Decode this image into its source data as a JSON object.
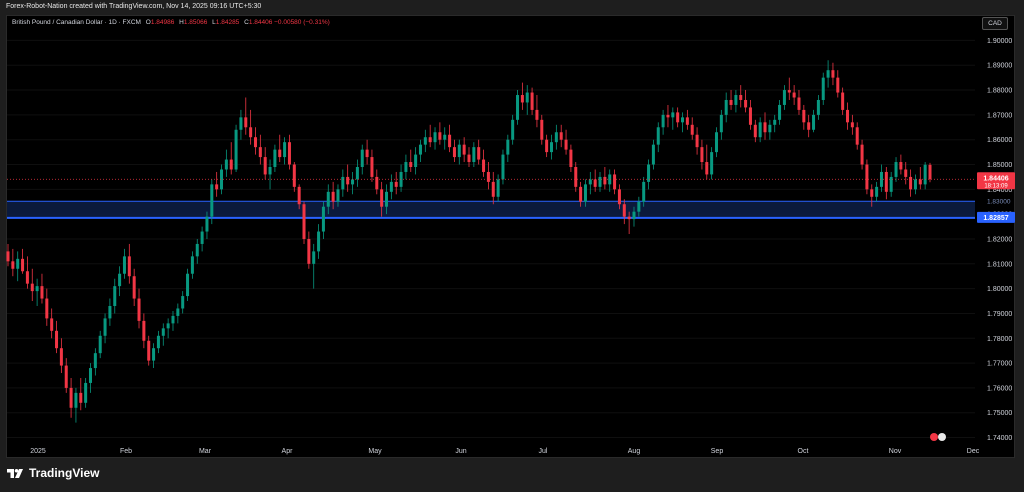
{
  "header": {
    "caption": "Forex-Robot-Nation created with TradingView.com, Nov 14, 2025 09:16 UTC+5:30"
  },
  "legend": {
    "symbol": "British Pound / Canadian Dollar · 1D · FXCM",
    "open_label": "O",
    "open": "1.84986",
    "high_label": "H",
    "high": "1.85066",
    "low_label": "L",
    "low": "1.84285",
    "close_label": "C",
    "close": "1.84406",
    "change": "−0.00580 (−0.31%)"
  },
  "currency_button": {
    "label": "CAD"
  },
  "price_badges": {
    "last_price": "1.84406",
    "countdown": "18:13:09",
    "zone_price": "1.82857",
    "zone_price_hidden": "1.83000"
  },
  "markers": {
    "events_icon_label": "events"
  },
  "footer": {
    "brand": "TradingView"
  },
  "colors": {
    "up": "#089981",
    "down": "#f23645",
    "zone_line": "#2962ff",
    "zone_fill": "#0d1f47",
    "background": "#000000"
  },
  "chart_data": {
    "type": "candlestick",
    "instrument": "British Pound / Canadian Dollar",
    "timeframe": "1D",
    "ylim": [
      1.737,
      1.905
    ],
    "y_ticks": [
      "1.90000",
      "1.89000",
      "1.88000",
      "1.87000",
      "1.86000",
      "1.85000",
      "1.84000",
      "1.83000",
      "1.82000",
      "1.81000",
      "1.80000",
      "1.79000",
      "1.78000",
      "1.77000",
      "1.76000",
      "1.75000",
      "1.74000"
    ],
    "x_ticks": [
      "2025",
      "Feb",
      "Mar",
      "Apr",
      "May",
      "Jun",
      "Jul",
      "Aug",
      "Sep",
      "Oct",
      "Nov",
      "Dec"
    ],
    "support_zone": {
      "lower": 1.8285,
      "upper": 1.8352
    },
    "last_price_line": 1.84406,
    "candles": [
      {
        "o": 1.815,
        "h": 1.818,
        "l": 1.809,
        "c": 1.811
      },
      {
        "o": 1.811,
        "h": 1.816,
        "l": 1.805,
        "c": 1.808
      },
      {
        "o": 1.808,
        "h": 1.815,
        "l": 1.803,
        "c": 1.812
      },
      {
        "o": 1.812,
        "h": 1.816,
        "l": 1.806,
        "c": 1.807
      },
      {
        "o": 1.807,
        "h": 1.813,
        "l": 1.8,
        "c": 1.802
      },
      {
        "o": 1.802,
        "h": 1.808,
        "l": 1.795,
        "c": 1.799
      },
      {
        "o": 1.799,
        "h": 1.804,
        "l": 1.793,
        "c": 1.801
      },
      {
        "o": 1.801,
        "h": 1.806,
        "l": 1.794,
        "c": 1.796
      },
      {
        "o": 1.796,
        "h": 1.8,
        "l": 1.785,
        "c": 1.788
      },
      {
        "o": 1.788,
        "h": 1.792,
        "l": 1.78,
        "c": 1.783
      },
      {
        "o": 1.783,
        "h": 1.787,
        "l": 1.774,
        "c": 1.776
      },
      {
        "o": 1.776,
        "h": 1.78,
        "l": 1.766,
        "c": 1.769
      },
      {
        "o": 1.769,
        "h": 1.772,
        "l": 1.758,
        "c": 1.76
      },
      {
        "o": 1.76,
        "h": 1.764,
        "l": 1.748,
        "c": 1.752
      },
      {
        "o": 1.752,
        "h": 1.76,
        "l": 1.746,
        "c": 1.758
      },
      {
        "o": 1.758,
        "h": 1.764,
        "l": 1.751,
        "c": 1.754
      },
      {
        "o": 1.754,
        "h": 1.764,
        "l": 1.752,
        "c": 1.762
      },
      {
        "o": 1.762,
        "h": 1.77,
        "l": 1.758,
        "c": 1.768
      },
      {
        "o": 1.768,
        "h": 1.776,
        "l": 1.765,
        "c": 1.774
      },
      {
        "o": 1.774,
        "h": 1.783,
        "l": 1.772,
        "c": 1.781
      },
      {
        "o": 1.781,
        "h": 1.79,
        "l": 1.778,
        "c": 1.788
      },
      {
        "o": 1.788,
        "h": 1.796,
        "l": 1.785,
        "c": 1.793
      },
      {
        "o": 1.793,
        "h": 1.804,
        "l": 1.79,
        "c": 1.801
      },
      {
        "o": 1.801,
        "h": 1.809,
        "l": 1.797,
        "c": 1.806
      },
      {
        "o": 1.806,
        "h": 1.816,
        "l": 1.804,
        "c": 1.813
      },
      {
        "o": 1.813,
        "h": 1.818,
        "l": 1.802,
        "c": 1.805
      },
      {
        "o": 1.805,
        "h": 1.808,
        "l": 1.793,
        "c": 1.796
      },
      {
        "o": 1.796,
        "h": 1.8,
        "l": 1.784,
        "c": 1.787
      },
      {
        "o": 1.787,
        "h": 1.79,
        "l": 1.776,
        "c": 1.779
      },
      {
        "o": 1.779,
        "h": 1.781,
        "l": 1.769,
        "c": 1.771
      },
      {
        "o": 1.771,
        "h": 1.778,
        "l": 1.768,
        "c": 1.776
      },
      {
        "o": 1.776,
        "h": 1.783,
        "l": 1.774,
        "c": 1.781
      },
      {
        "o": 1.781,
        "h": 1.786,
        "l": 1.777,
        "c": 1.784
      },
      {
        "o": 1.784,
        "h": 1.788,
        "l": 1.78,
        "c": 1.786
      },
      {
        "o": 1.786,
        "h": 1.791,
        "l": 1.783,
        "c": 1.789
      },
      {
        "o": 1.789,
        "h": 1.794,
        "l": 1.786,
        "c": 1.792
      },
      {
        "o": 1.792,
        "h": 1.799,
        "l": 1.79,
        "c": 1.797
      },
      {
        "o": 1.797,
        "h": 1.808,
        "l": 1.795,
        "c": 1.806
      },
      {
        "o": 1.806,
        "h": 1.815,
        "l": 1.804,
        "c": 1.813
      },
      {
        "o": 1.813,
        "h": 1.82,
        "l": 1.81,
        "c": 1.818
      },
      {
        "o": 1.818,
        "h": 1.825,
        "l": 1.815,
        "c": 1.823
      },
      {
        "o": 1.823,
        "h": 1.831,
        "l": 1.82,
        "c": 1.829
      },
      {
        "o": 1.829,
        "h": 1.844,
        "l": 1.826,
        "c": 1.842
      },
      {
        "o": 1.842,
        "h": 1.847,
        "l": 1.837,
        "c": 1.84
      },
      {
        "o": 1.84,
        "h": 1.85,
        "l": 1.838,
        "c": 1.848
      },
      {
        "o": 1.848,
        "h": 1.856,
        "l": 1.845,
        "c": 1.852
      },
      {
        "o": 1.852,
        "h": 1.859,
        "l": 1.846,
        "c": 1.848
      },
      {
        "o": 1.848,
        "h": 1.866,
        "l": 1.847,
        "c": 1.864
      },
      {
        "o": 1.864,
        "h": 1.872,
        "l": 1.86,
        "c": 1.869
      },
      {
        "o": 1.869,
        "h": 1.877,
        "l": 1.862,
        "c": 1.865
      },
      {
        "o": 1.865,
        "h": 1.872,
        "l": 1.858,
        "c": 1.861
      },
      {
        "o": 1.861,
        "h": 1.865,
        "l": 1.854,
        "c": 1.857
      },
      {
        "o": 1.857,
        "h": 1.862,
        "l": 1.85,
        "c": 1.853
      },
      {
        "o": 1.853,
        "h": 1.857,
        "l": 1.844,
        "c": 1.846
      },
      {
        "o": 1.846,
        "h": 1.852,
        "l": 1.84,
        "c": 1.849
      },
      {
        "o": 1.849,
        "h": 1.858,
        "l": 1.847,
        "c": 1.856
      },
      {
        "o": 1.856,
        "h": 1.862,
        "l": 1.851,
        "c": 1.853
      },
      {
        "o": 1.853,
        "h": 1.861,
        "l": 1.85,
        "c": 1.859
      },
      {
        "o": 1.859,
        "h": 1.862,
        "l": 1.848,
        "c": 1.85
      },
      {
        "o": 1.85,
        "h": 1.851,
        "l": 1.839,
        "c": 1.841
      },
      {
        "o": 1.841,
        "h": 1.842,
        "l": 1.832,
        "c": 1.834
      },
      {
        "o": 1.834,
        "h": 1.835,
        "l": 1.818,
        "c": 1.82
      },
      {
        "o": 1.82,
        "h": 1.823,
        "l": 1.808,
        "c": 1.81
      },
      {
        "o": 1.81,
        "h": 1.818,
        "l": 1.8,
        "c": 1.815
      },
      {
        "o": 1.815,
        "h": 1.826,
        "l": 1.812,
        "c": 1.823
      },
      {
        "o": 1.823,
        "h": 1.835,
        "l": 1.82,
        "c": 1.833
      },
      {
        "o": 1.833,
        "h": 1.842,
        "l": 1.83,
        "c": 1.839
      },
      {
        "o": 1.839,
        "h": 1.843,
        "l": 1.832,
        "c": 1.835
      },
      {
        "o": 1.835,
        "h": 1.842,
        "l": 1.833,
        "c": 1.84
      },
      {
        "o": 1.84,
        "h": 1.848,
        "l": 1.837,
        "c": 1.845
      },
      {
        "o": 1.845,
        "h": 1.85,
        "l": 1.839,
        "c": 1.842
      },
      {
        "o": 1.842,
        "h": 1.847,
        "l": 1.838,
        "c": 1.844
      },
      {
        "o": 1.844,
        "h": 1.852,
        "l": 1.841,
        "c": 1.849
      },
      {
        "o": 1.849,
        "h": 1.858,
        "l": 1.846,
        "c": 1.856
      },
      {
        "o": 1.856,
        "h": 1.86,
        "l": 1.85,
        "c": 1.853
      },
      {
        "o": 1.853,
        "h": 1.856,
        "l": 1.843,
        "c": 1.845
      },
      {
        "o": 1.845,
        "h": 1.848,
        "l": 1.838,
        "c": 1.84
      },
      {
        "o": 1.84,
        "h": 1.843,
        "l": 1.829,
        "c": 1.833
      },
      {
        "o": 1.833,
        "h": 1.842,
        "l": 1.83,
        "c": 1.839
      },
      {
        "o": 1.839,
        "h": 1.846,
        "l": 1.836,
        "c": 1.843
      },
      {
        "o": 1.843,
        "h": 1.847,
        "l": 1.838,
        "c": 1.841
      },
      {
        "o": 1.841,
        "h": 1.85,
        "l": 1.839,
        "c": 1.847
      },
      {
        "o": 1.847,
        "h": 1.854,
        "l": 1.844,
        "c": 1.851
      },
      {
        "o": 1.851,
        "h": 1.856,
        "l": 1.847,
        "c": 1.849
      },
      {
        "o": 1.849,
        "h": 1.857,
        "l": 1.846,
        "c": 1.854
      },
      {
        "o": 1.854,
        "h": 1.86,
        "l": 1.851,
        "c": 1.858
      },
      {
        "o": 1.858,
        "h": 1.864,
        "l": 1.855,
        "c": 1.861
      },
      {
        "o": 1.861,
        "h": 1.866,
        "l": 1.857,
        "c": 1.859
      },
      {
        "o": 1.859,
        "h": 1.865,
        "l": 1.856,
        "c": 1.863
      },
      {
        "o": 1.863,
        "h": 1.867,
        "l": 1.858,
        "c": 1.86
      },
      {
        "o": 1.86,
        "h": 1.865,
        "l": 1.856,
        "c": 1.862
      },
      {
        "o": 1.862,
        "h": 1.866,
        "l": 1.855,
        "c": 1.857
      },
      {
        "o": 1.857,
        "h": 1.86,
        "l": 1.851,
        "c": 1.853
      },
      {
        "o": 1.853,
        "h": 1.86,
        "l": 1.85,
        "c": 1.858
      },
      {
        "o": 1.858,
        "h": 1.861,
        "l": 1.851,
        "c": 1.854
      },
      {
        "o": 1.854,
        "h": 1.857,
        "l": 1.849,
        "c": 1.851
      },
      {
        "o": 1.851,
        "h": 1.859,
        "l": 1.849,
        "c": 1.857
      },
      {
        "o": 1.857,
        "h": 1.86,
        "l": 1.85,
        "c": 1.852
      },
      {
        "o": 1.852,
        "h": 1.856,
        "l": 1.845,
        "c": 1.847
      },
      {
        "o": 1.847,
        "h": 1.851,
        "l": 1.84,
        "c": 1.843
      },
      {
        "o": 1.843,
        "h": 1.847,
        "l": 1.834,
        "c": 1.837
      },
      {
        "o": 1.837,
        "h": 1.846,
        "l": 1.835,
        "c": 1.844
      },
      {
        "o": 1.844,
        "h": 1.856,
        "l": 1.842,
        "c": 1.854
      },
      {
        "o": 1.854,
        "h": 1.862,
        "l": 1.851,
        "c": 1.86
      },
      {
        "o": 1.86,
        "h": 1.87,
        "l": 1.858,
        "c": 1.868
      },
      {
        "o": 1.868,
        "h": 1.88,
        "l": 1.866,
        "c": 1.878
      },
      {
        "o": 1.878,
        "h": 1.883,
        "l": 1.872,
        "c": 1.875
      },
      {
        "o": 1.875,
        "h": 1.882,
        "l": 1.87,
        "c": 1.879
      },
      {
        "o": 1.879,
        "h": 1.881,
        "l": 1.87,
        "c": 1.872
      },
      {
        "o": 1.872,
        "h": 1.878,
        "l": 1.865,
        "c": 1.868
      },
      {
        "o": 1.868,
        "h": 1.87,
        "l": 1.858,
        "c": 1.86
      },
      {
        "o": 1.86,
        "h": 1.862,
        "l": 1.853,
        "c": 1.855
      },
      {
        "o": 1.855,
        "h": 1.862,
        "l": 1.852,
        "c": 1.859
      },
      {
        "o": 1.859,
        "h": 1.866,
        "l": 1.856,
        "c": 1.863
      },
      {
        "o": 1.863,
        "h": 1.866,
        "l": 1.857,
        "c": 1.86
      },
      {
        "o": 1.86,
        "h": 1.864,
        "l": 1.854,
        "c": 1.856
      },
      {
        "o": 1.856,
        "h": 1.858,
        "l": 1.847,
        "c": 1.849
      },
      {
        "o": 1.849,
        "h": 1.851,
        "l": 1.839,
        "c": 1.841
      },
      {
        "o": 1.841,
        "h": 1.843,
        "l": 1.833,
        "c": 1.835
      },
      {
        "o": 1.835,
        "h": 1.844,
        "l": 1.833,
        "c": 1.842
      },
      {
        "o": 1.842,
        "h": 1.847,
        "l": 1.838,
        "c": 1.844
      },
      {
        "o": 1.844,
        "h": 1.848,
        "l": 1.839,
        "c": 1.841
      },
      {
        "o": 1.841,
        "h": 1.847,
        "l": 1.839,
        "c": 1.845
      },
      {
        "o": 1.845,
        "h": 1.849,
        "l": 1.84,
        "c": 1.842
      },
      {
        "o": 1.842,
        "h": 1.848,
        "l": 1.839,
        "c": 1.846
      },
      {
        "o": 1.846,
        "h": 1.848,
        "l": 1.838,
        "c": 1.84
      },
      {
        "o": 1.84,
        "h": 1.842,
        "l": 1.832,
        "c": 1.834
      },
      {
        "o": 1.834,
        "h": 1.836,
        "l": 1.826,
        "c": 1.829
      },
      {
        "o": 1.829,
        "h": 1.831,
        "l": 1.822,
        "c": 1.828
      },
      {
        "o": 1.828,
        "h": 1.833,
        "l": 1.825,
        "c": 1.831
      },
      {
        "o": 1.831,
        "h": 1.837,
        "l": 1.829,
        "c": 1.835
      },
      {
        "o": 1.835,
        "h": 1.845,
        "l": 1.833,
        "c": 1.843
      },
      {
        "o": 1.843,
        "h": 1.852,
        "l": 1.84,
        "c": 1.85
      },
      {
        "o": 1.85,
        "h": 1.86,
        "l": 1.848,
        "c": 1.858
      },
      {
        "o": 1.858,
        "h": 1.867,
        "l": 1.855,
        "c": 1.865
      },
      {
        "o": 1.865,
        "h": 1.872,
        "l": 1.862,
        "c": 1.87
      },
      {
        "o": 1.87,
        "h": 1.874,
        "l": 1.865,
        "c": 1.869
      },
      {
        "o": 1.869,
        "h": 1.873,
        "l": 1.864,
        "c": 1.871
      },
      {
        "o": 1.871,
        "h": 1.873,
        "l": 1.865,
        "c": 1.867
      },
      {
        "o": 1.867,
        "h": 1.871,
        "l": 1.863,
        "c": 1.869
      },
      {
        "o": 1.869,
        "h": 1.872,
        "l": 1.864,
        "c": 1.866
      },
      {
        "o": 1.866,
        "h": 1.869,
        "l": 1.86,
        "c": 1.862
      },
      {
        "o": 1.862,
        "h": 1.865,
        "l": 1.854,
        "c": 1.857
      },
      {
        "o": 1.857,
        "h": 1.86,
        "l": 1.848,
        "c": 1.851
      },
      {
        "o": 1.851,
        "h": 1.858,
        "l": 1.844,
        "c": 1.846
      },
      {
        "o": 1.846,
        "h": 1.857,
        "l": 1.844,
        "c": 1.855
      },
      {
        "o": 1.855,
        "h": 1.865,
        "l": 1.853,
        "c": 1.863
      },
      {
        "o": 1.863,
        "h": 1.872,
        "l": 1.86,
        "c": 1.87
      },
      {
        "o": 1.87,
        "h": 1.879,
        "l": 1.867,
        "c": 1.876
      },
      {
        "o": 1.876,
        "h": 1.88,
        "l": 1.872,
        "c": 1.874
      },
      {
        "o": 1.874,
        "h": 1.88,
        "l": 1.871,
        "c": 1.878
      },
      {
        "o": 1.878,
        "h": 1.882,
        "l": 1.873,
        "c": 1.876
      },
      {
        "o": 1.876,
        "h": 1.88,
        "l": 1.871,
        "c": 1.873
      },
      {
        "o": 1.873,
        "h": 1.876,
        "l": 1.864,
        "c": 1.866
      },
      {
        "o": 1.866,
        "h": 1.868,
        "l": 1.859,
        "c": 1.861
      },
      {
        "o": 1.861,
        "h": 1.869,
        "l": 1.859,
        "c": 1.867
      },
      {
        "o": 1.867,
        "h": 1.871,
        "l": 1.86,
        "c": 1.863
      },
      {
        "o": 1.863,
        "h": 1.868,
        "l": 1.86,
        "c": 1.866
      },
      {
        "o": 1.866,
        "h": 1.87,
        "l": 1.863,
        "c": 1.868
      },
      {
        "o": 1.868,
        "h": 1.876,
        "l": 1.866,
        "c": 1.874
      },
      {
        "o": 1.874,
        "h": 1.882,
        "l": 1.872,
        "c": 1.88
      },
      {
        "o": 1.88,
        "h": 1.885,
        "l": 1.876,
        "c": 1.879
      },
      {
        "o": 1.879,
        "h": 1.882,
        "l": 1.874,
        "c": 1.877
      },
      {
        "o": 1.877,
        "h": 1.88,
        "l": 1.87,
        "c": 1.872
      },
      {
        "o": 1.872,
        "h": 1.874,
        "l": 1.864,
        "c": 1.867
      },
      {
        "o": 1.867,
        "h": 1.87,
        "l": 1.861,
        "c": 1.864
      },
      {
        "o": 1.864,
        "h": 1.872,
        "l": 1.863,
        "c": 1.87
      },
      {
        "o": 1.87,
        "h": 1.878,
        "l": 1.868,
        "c": 1.876
      },
      {
        "o": 1.876,
        "h": 1.887,
        "l": 1.874,
        "c": 1.885
      },
      {
        "o": 1.885,
        "h": 1.892,
        "l": 1.881,
        "c": 1.888
      },
      {
        "o": 1.888,
        "h": 1.891,
        "l": 1.882,
        "c": 1.885
      },
      {
        "o": 1.885,
        "h": 1.888,
        "l": 1.877,
        "c": 1.879
      },
      {
        "o": 1.879,
        "h": 1.881,
        "l": 1.87,
        "c": 1.872
      },
      {
        "o": 1.872,
        "h": 1.875,
        "l": 1.864,
        "c": 1.867
      },
      {
        "o": 1.867,
        "h": 1.87,
        "l": 1.862,
        "c": 1.865
      },
      {
        "o": 1.865,
        "h": 1.867,
        "l": 1.856,
        "c": 1.858
      },
      {
        "o": 1.858,
        "h": 1.86,
        "l": 1.848,
        "c": 1.85
      },
      {
        "o": 1.85,
        "h": 1.852,
        "l": 1.838,
        "c": 1.84
      },
      {
        "o": 1.84,
        "h": 1.842,
        "l": 1.833,
        "c": 1.837
      },
      {
        "o": 1.837,
        "h": 1.843,
        "l": 1.835,
        "c": 1.841
      },
      {
        "o": 1.841,
        "h": 1.85,
        "l": 1.839,
        "c": 1.847
      },
      {
        "o": 1.847,
        "h": 1.849,
        "l": 1.836,
        "c": 1.839
      },
      {
        "o": 1.839,
        "h": 1.847,
        "l": 1.837,
        "c": 1.845
      },
      {
        "o": 1.845,
        "h": 1.853,
        "l": 1.843,
        "c": 1.851
      },
      {
        "o": 1.851,
        "h": 1.854,
        "l": 1.846,
        "c": 1.848
      },
      {
        "o": 1.848,
        "h": 1.851,
        "l": 1.842,
        "c": 1.845
      },
      {
        "o": 1.845,
        "h": 1.848,
        "l": 1.837,
        "c": 1.84
      },
      {
        "o": 1.84,
        "h": 1.846,
        "l": 1.838,
        "c": 1.844
      },
      {
        "o": 1.844,
        "h": 1.849,
        "l": 1.84,
        "c": 1.842
      },
      {
        "o": 1.842,
        "h": 1.851,
        "l": 1.84,
        "c": 1.8499
      },
      {
        "o": 1.84986,
        "h": 1.85066,
        "l": 1.84285,
        "c": 1.84406
      }
    ]
  }
}
